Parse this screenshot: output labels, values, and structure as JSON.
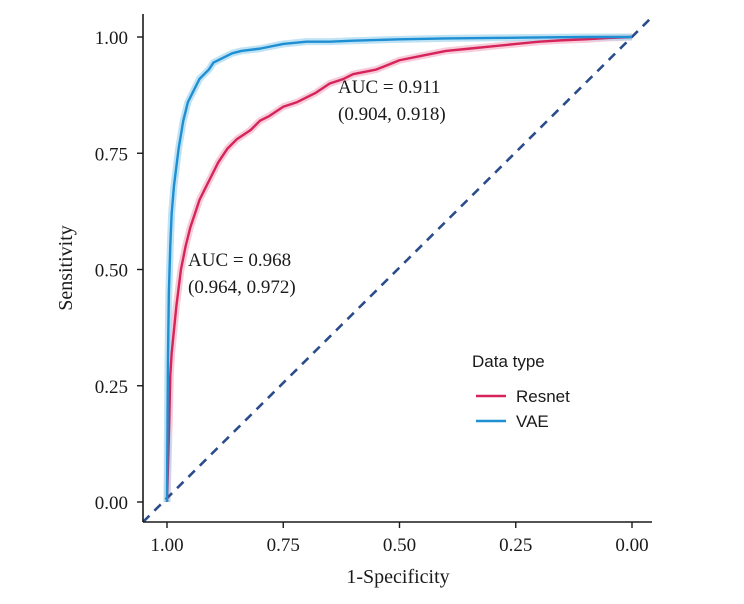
{
  "chart_data": {
    "type": "line",
    "xlabel": "1-Specificity",
    "ylabel": "Sensitivity",
    "xlim": [
      1.0,
      0.0
    ],
    "ylim": [
      0.0,
      1.0
    ],
    "x_ticks": [
      "1.00",
      "0.75",
      "0.50",
      "0.25",
      "0.00"
    ],
    "y_ticks": [
      "0.00",
      "0.25",
      "0.50",
      "0.75",
      "1.00"
    ],
    "grid": false,
    "legend": {
      "title": "Data type",
      "position": "bottom-right"
    },
    "series": [
      {
        "name": "Resnet",
        "color": "#d6245a",
        "x": [
          1.0,
          0.995,
          0.993,
          0.99,
          0.985,
          0.98,
          0.975,
          0.97,
          0.96,
          0.95,
          0.94,
          0.93,
          0.92,
          0.91,
          0.9,
          0.89,
          0.87,
          0.85,
          0.82,
          0.8,
          0.78,
          0.75,
          0.72,
          0.7,
          0.68,
          0.65,
          0.62,
          0.6,
          0.55,
          0.5,
          0.45,
          0.4,
          0.35,
          0.3,
          0.25,
          0.2,
          0.15,
          0.1,
          0.05,
          0.0
        ],
        "y": [
          0.0,
          0.18,
          0.27,
          0.32,
          0.37,
          0.42,
          0.46,
          0.5,
          0.55,
          0.59,
          0.62,
          0.65,
          0.67,
          0.69,
          0.71,
          0.73,
          0.76,
          0.78,
          0.8,
          0.82,
          0.83,
          0.85,
          0.86,
          0.87,
          0.88,
          0.9,
          0.91,
          0.92,
          0.93,
          0.95,
          0.96,
          0.97,
          0.975,
          0.98,
          0.985,
          0.99,
          0.993,
          0.995,
          0.998,
          1.0
        ]
      },
      {
        "name": "VAE",
        "color": "#1e8fd2",
        "x": [
          1.0,
          0.998,
          0.996,
          0.993,
          0.99,
          0.985,
          0.98,
          0.975,
          0.97,
          0.965,
          0.96,
          0.955,
          0.95,
          0.94,
          0.93,
          0.92,
          0.91,
          0.9,
          0.88,
          0.86,
          0.84,
          0.8,
          0.75,
          0.7,
          0.65,
          0.6,
          0.5,
          0.4,
          0.3,
          0.2,
          0.1,
          0.0
        ],
        "y": [
          0.0,
          0.3,
          0.45,
          0.55,
          0.62,
          0.68,
          0.72,
          0.76,
          0.79,
          0.82,
          0.84,
          0.86,
          0.87,
          0.89,
          0.91,
          0.92,
          0.93,
          0.945,
          0.955,
          0.965,
          0.97,
          0.975,
          0.985,
          0.99,
          0.99,
          0.992,
          0.995,
          0.997,
          0.998,
          0.999,
          1.0,
          1.0
        ]
      }
    ],
    "diagonal": {
      "color": "#2b4c8c",
      "style": "dashed"
    },
    "annotations": [
      {
        "line1": "AUC = 0.911",
        "line2": "(0.904, 0.918)"
      },
      {
        "line1": "AUC = 0.968",
        "line2": "(0.964, 0.972)"
      }
    ]
  }
}
